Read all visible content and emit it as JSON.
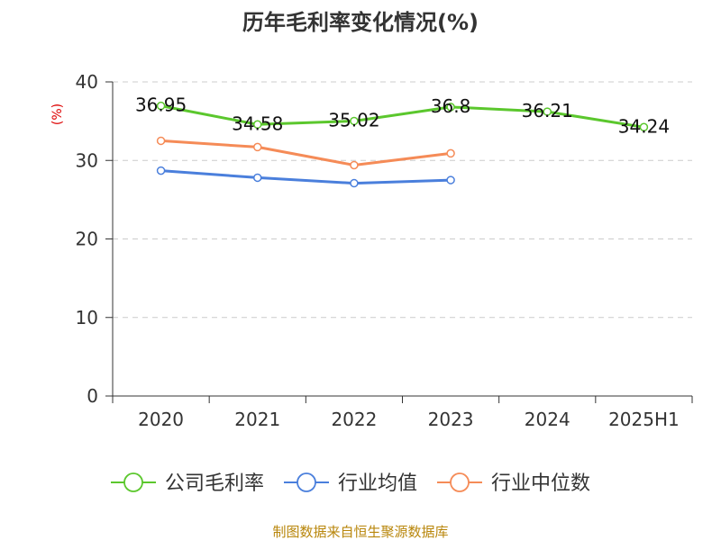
{
  "chart_data": {
    "type": "line",
    "title": "历年毛利率变化情况(%)",
    "ylabel": "(%)",
    "categories": [
      "2020",
      "2021",
      "2022",
      "2023",
      "2024",
      "2025H1"
    ],
    "ylim": [
      0,
      40
    ],
    "yticks": [
      0,
      10,
      20,
      30,
      40
    ],
    "grid": true,
    "legend_position": "bottom",
    "series": [
      {
        "name": "公司毛利率",
        "color": "#5bc72d",
        "values": [
          36.95,
          34.58,
          35.02,
          36.8,
          36.21,
          34.24
        ],
        "labels": [
          "36.95",
          "34.58",
          "35.02",
          "36.8",
          "36.21",
          "34.24"
        ]
      },
      {
        "name": "行业均值",
        "color": "#4a7fdc",
        "values": [
          28.7,
          27.8,
          27.1,
          27.5,
          null,
          null
        ]
      },
      {
        "name": "行业中位数",
        "color": "#f58b57",
        "values": [
          32.5,
          31.7,
          29.4,
          30.9,
          null,
          null
        ]
      }
    ]
  },
  "source": "制图数据来自恒生聚源数据库"
}
